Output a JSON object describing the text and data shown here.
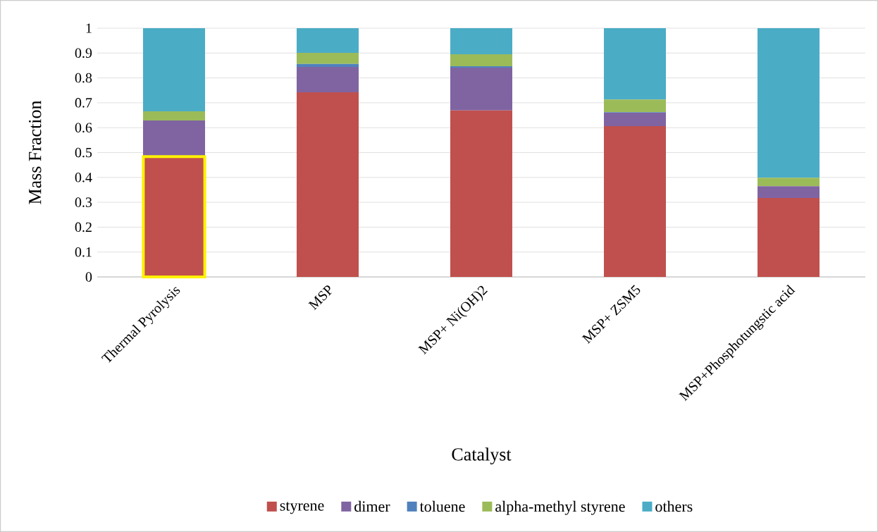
{
  "chart_data": {
    "type": "bar",
    "stacked": true,
    "xlabel": "Catalyst",
    "ylabel": "Mass Fraction",
    "categories": [
      "Thermal Pyrolysis",
      "MSP",
      "MSP+ Ni(OH)2",
      "MSP+ ZSM5",
      "MSP+Phosphotungstic acid"
    ],
    "series": [
      {
        "name": "styrene",
        "color": "#c0504d",
        "values": [
          0.484,
          0.742,
          0.669,
          0.606,
          0.317
        ]
      },
      {
        "name": "dimer",
        "color": "#8064a2",
        "values": [
          0.145,
          0.102,
          0.172,
          0.054,
          0.048
        ]
      },
      {
        "name": "toluene",
        "color": "#4f81bd",
        "values": [
          0.0,
          0.012,
          0.006,
          0.002,
          0.0
        ]
      },
      {
        "name": "alpha-methyl styrene",
        "color": "#9bbb59",
        "values": [
          0.037,
          0.045,
          0.048,
          0.051,
          0.034
        ]
      },
      {
        "name": "others",
        "color": "#4bacc6",
        "values": [
          0.334,
          0.099,
          0.105,
          0.287,
          0.601
        ]
      }
    ],
    "ylim": [
      0,
      1
    ],
    "yticks": [
      0,
      0.1,
      0.2,
      0.3,
      0.4,
      0.5,
      0.6,
      0.7,
      0.8,
      0.9,
      1
    ],
    "grid": "y",
    "legend": "bottom"
  }
}
